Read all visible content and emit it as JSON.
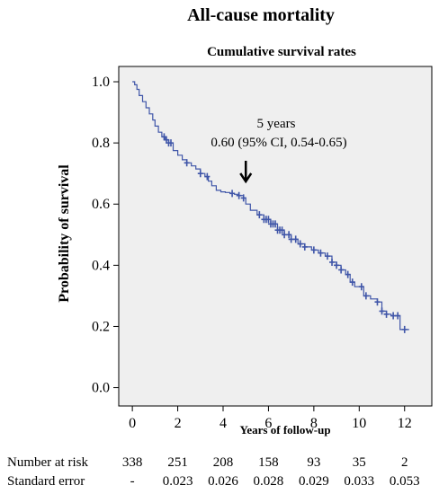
{
  "chart_data": {
    "type": "line",
    "title": "All-cause mortality",
    "subtitle": "Cumulative survival rates",
    "xlabel": "Years of follow-up",
    "ylabel": "Probability of survival",
    "xlim": [
      -0.6,
      13.2
    ],
    "ylim": [
      -0.06,
      1.05
    ],
    "x_ticks": [
      0,
      2,
      4,
      6,
      8,
      10,
      12
    ],
    "x_tick_labels": [
      "0",
      "2",
      "4",
      "6",
      "8",
      "10",
      "12"
    ],
    "y_ticks": [
      0.0,
      0.2,
      0.4,
      0.6,
      0.8,
      1.0
    ],
    "y_tick_labels": [
      "0.0",
      "0.2",
      "0.4",
      "0.6",
      "0.8",
      "1.0"
    ],
    "grid": false,
    "line_color": "#3f55a8",
    "plot_background": "#efefef",
    "series": [
      {
        "x": [
          0,
          0.1,
          0.2,
          0.3,
          0.45,
          0.6,
          0.75,
          0.9,
          1.0,
          1.15,
          1.3,
          1.45,
          1.6,
          1.8,
          2.0,
          2.2,
          2.4,
          2.6,
          2.8,
          3.0,
          3.2,
          3.35,
          3.5,
          3.7,
          3.9,
          4.1,
          4.3,
          4.5,
          4.7,
          4.9,
          5.0,
          5.2,
          5.5,
          5.8,
          6.1,
          6.4,
          6.7,
          7.0,
          7.3,
          7.6,
          7.9,
          8.2,
          8.5,
          8.8,
          9.0,
          9.2,
          9.4,
          9.6,
          9.8,
          10.0,
          10.2,
          10.5,
          10.8,
          11.0,
          11.2,
          11.4,
          11.6,
          11.8,
          11.9,
          12.0,
          12.2
        ],
        "y": [
          1.0,
          0.99,
          0.975,
          0.955,
          0.935,
          0.915,
          0.895,
          0.875,
          0.855,
          0.835,
          0.82,
          0.81,
          0.8,
          0.775,
          0.76,
          0.745,
          0.735,
          0.725,
          0.715,
          0.7,
          0.69,
          0.675,
          0.66,
          0.645,
          0.64,
          0.638,
          0.635,
          0.632,
          0.628,
          0.62,
          0.6,
          0.58,
          0.565,
          0.55,
          0.535,
          0.515,
          0.5,
          0.485,
          0.47,
          0.46,
          0.45,
          0.44,
          0.43,
          0.41,
          0.4,
          0.385,
          0.37,
          0.345,
          0.33,
          0.33,
          0.3,
          0.29,
          0.28,
          0.25,
          0.24,
          0.235,
          0.235,
          0.19,
          0.19,
          0.19,
          0.19
        ]
      }
    ],
    "censor_marks_x": [
      1.4,
      1.5,
      1.6,
      1.7,
      2.4,
      3.0,
      3.3,
      4.4,
      4.7,
      4.9,
      5.6,
      5.8,
      5.9,
      6.0,
      6.1,
      6.2,
      6.3,
      6.4,
      6.5,
      6.6,
      6.7,
      6.9,
      7.0,
      7.2,
      7.4,
      7.6,
      8.0,
      8.3,
      8.6,
      8.8,
      9.0,
      9.2,
      9.5,
      9.7,
      10.1,
      10.3,
      10.8,
      11.0,
      11.2,
      11.5,
      11.7,
      12.0
    ],
    "annotation": {
      "line1": "5 years",
      "line2": "0.60 (95% CI, 0.54-0.65)",
      "arrow_x": 5.0
    },
    "risk_table": {
      "rows": [
        {
          "label": "Number at risk",
          "values": [
            "338",
            "251",
            "208",
            "158",
            "93",
            "35",
            "2"
          ]
        },
        {
          "label": "Standard error",
          "values": [
            "-",
            "0.023",
            "0.026",
            "0.028",
            "0.029",
            "0.033",
            "0.053"
          ]
        }
      ]
    }
  }
}
